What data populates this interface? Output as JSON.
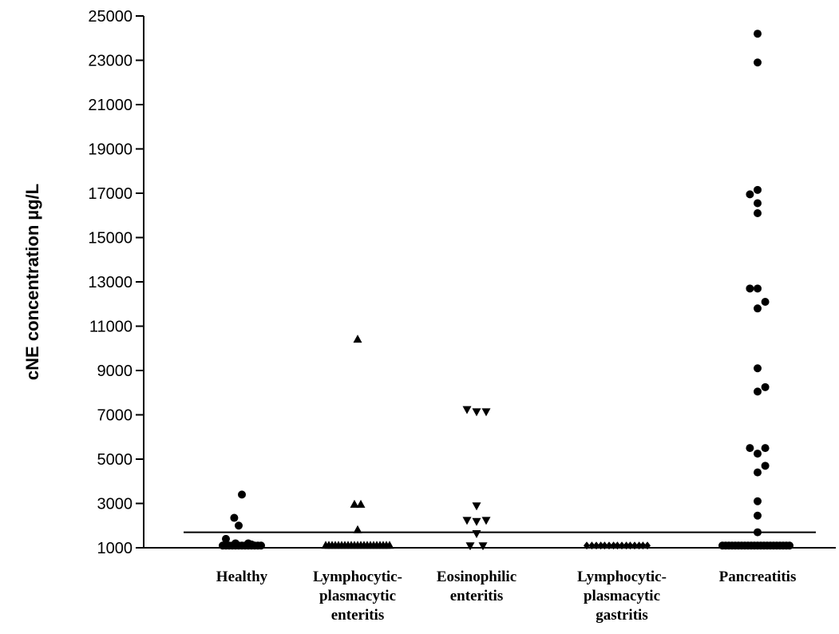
{
  "chart_data": {
    "type": "scatter",
    "ylabel": "cNE concentration µg/L",
    "xlabel": "",
    "ylim": [
      1000,
      25000
    ],
    "yticks": [
      "25000",
      "23000",
      "21000",
      "19000",
      "17000",
      "15000",
      "13000",
      "11000",
      "9000",
      "7000",
      "5000",
      "3000",
      "1000"
    ],
    "cutoff_line": 1700,
    "categories": [
      {
        "lines": [
          "Healthy"
        ]
      },
      {
        "lines": [
          "Lymphocytic-",
          "plasmacytic",
          "enteritis"
        ]
      },
      {
        "lines": [
          "Eosinophilic",
          "enteritis"
        ]
      },
      {
        "lines": [
          "Lymphocytic-",
          "plasmacytic",
          "gastritis"
        ]
      },
      {
        "lines": [
          "Pancreatitis"
        ]
      }
    ],
    "series": [
      {
        "category": "Healthy",
        "marker": "circle",
        "points": [
          [
            -0.3,
            1100
          ],
          [
            -0.25,
            1100
          ],
          [
            -0.2,
            1100
          ],
          [
            -0.15,
            1100
          ],
          [
            -0.1,
            1100
          ],
          [
            -0.05,
            1100
          ],
          [
            0.0,
            1100
          ],
          [
            0.05,
            1100
          ],
          [
            0.1,
            1100
          ],
          [
            0.15,
            1100
          ],
          [
            0.2,
            1100
          ],
          [
            0.25,
            1100
          ],
          [
            0.3,
            1100
          ],
          [
            -0.25,
            1400
          ],
          [
            0.1,
            1200
          ],
          [
            0.15,
            1150
          ],
          [
            -0.1,
            1200
          ],
          [
            -0.12,
            2350
          ],
          [
            -0.05,
            2000
          ],
          [
            0.0,
            3400
          ]
        ]
      },
      {
        "category": "Lymphocytic-plasmacytic enteritis",
        "marker": "triangle-up",
        "points": [
          [
            -0.5,
            1100
          ],
          [
            -0.45,
            1100
          ],
          [
            -0.4,
            1100
          ],
          [
            -0.35,
            1100
          ],
          [
            -0.3,
            1100
          ],
          [
            -0.25,
            1100
          ],
          [
            -0.2,
            1100
          ],
          [
            -0.15,
            1100
          ],
          [
            -0.1,
            1100
          ],
          [
            -0.05,
            1100
          ],
          [
            0.0,
            1100
          ],
          [
            0.05,
            1100
          ],
          [
            0.1,
            1100
          ],
          [
            0.15,
            1100
          ],
          [
            0.2,
            1100
          ],
          [
            0.25,
            1100
          ],
          [
            0.3,
            1100
          ],
          [
            0.35,
            1100
          ],
          [
            0.4,
            1100
          ],
          [
            0.45,
            1100
          ],
          [
            0.5,
            1100
          ],
          [
            0.0,
            1800
          ],
          [
            -0.05,
            2950
          ],
          [
            0.05,
            2950
          ],
          [
            0.0,
            10400
          ]
        ]
      },
      {
        "category": "Eosinophilic enteritis",
        "marker": "triangle-down",
        "points": [
          [
            -0.1,
            1100
          ],
          [
            0.1,
            1100
          ],
          [
            0.0,
            1650
          ],
          [
            -0.15,
            2250
          ],
          [
            0.0,
            2200
          ],
          [
            0.15,
            2250
          ],
          [
            0.0,
            2900
          ],
          [
            -0.15,
            7250
          ],
          [
            0.0,
            7150
          ],
          [
            0.15,
            7150
          ]
        ]
      },
      {
        "category": "Lymphocytic-plasmacytic gastritis",
        "marker": "diamond",
        "points": [
          [
            -0.55,
            1100
          ],
          [
            -0.47,
            1100
          ],
          [
            -0.4,
            1100
          ],
          [
            -0.33,
            1100
          ],
          [
            -0.27,
            1100
          ],
          [
            -0.2,
            1100
          ],
          [
            -0.13,
            1100
          ],
          [
            -0.07,
            1100
          ],
          [
            0.0,
            1100
          ],
          [
            0.07,
            1100
          ],
          [
            0.13,
            1100
          ],
          [
            0.2,
            1100
          ],
          [
            0.27,
            1100
          ],
          [
            0.33,
            1100
          ],
          [
            0.4,
            1100
          ]
        ]
      },
      {
        "category": "Pancreatitis",
        "marker": "circle",
        "points": [
          [
            -0.55,
            1100
          ],
          [
            -0.5,
            1100
          ],
          [
            -0.45,
            1100
          ],
          [
            -0.4,
            1100
          ],
          [
            -0.35,
            1100
          ],
          [
            -0.3,
            1100
          ],
          [
            -0.25,
            1100
          ],
          [
            -0.2,
            1100
          ],
          [
            -0.15,
            1100
          ],
          [
            -0.1,
            1100
          ],
          [
            -0.05,
            1100
          ],
          [
            0.0,
            1100
          ],
          [
            0.05,
            1100
          ],
          [
            0.1,
            1100
          ],
          [
            0.15,
            1100
          ],
          [
            0.2,
            1100
          ],
          [
            0.25,
            1100
          ],
          [
            0.3,
            1100
          ],
          [
            0.35,
            1100
          ],
          [
            0.4,
            1100
          ],
          [
            0.45,
            1100
          ],
          [
            0.5,
            1100
          ],
          [
            0.0,
            1700
          ],
          [
            0.0,
            2450
          ],
          [
            0.0,
            3100
          ],
          [
            0.0,
            4400
          ],
          [
            0.12,
            4700
          ],
          [
            -0.12,
            5500
          ],
          [
            0.12,
            5500
          ],
          [
            0.0,
            5250
          ],
          [
            0.0,
            8050
          ],
          [
            0.12,
            8250
          ],
          [
            0.0,
            9100
          ],
          [
            0.0,
            11800
          ],
          [
            0.12,
            12100
          ],
          [
            -0.12,
            12700
          ],
          [
            0.0,
            12700
          ],
          [
            0.0,
            16100
          ],
          [
            0.0,
            16550
          ],
          [
            -0.12,
            16950
          ],
          [
            0.0,
            17150
          ],
          [
            0.0,
            22900
          ],
          [
            0.0,
            24200
          ]
        ]
      }
    ]
  }
}
